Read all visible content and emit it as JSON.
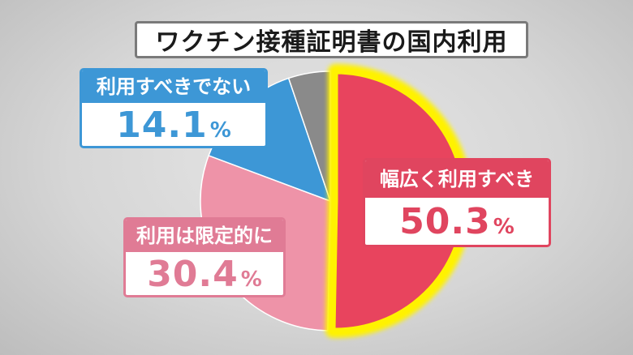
{
  "chart_data": {
    "type": "pie",
    "title": "ワクチン接種証明書の国内利用",
    "slices": [
      {
        "label": "幅広く利用すべき",
        "value": 50.3,
        "color": "#e8445e",
        "highlight": true
      },
      {
        "label": "利用は限定的に",
        "value": 30.4,
        "color": "#ee93a8"
      },
      {
        "label": "利用すべきでない",
        "value": 14.1,
        "color": "#3d97d6"
      },
      {
        "label": "",
        "value": 5.2,
        "color": "#8a8a8a"
      }
    ],
    "highlight_color": "#fff200",
    "unit": "%"
  },
  "callouts": {
    "yes": {
      "label": "幅広く利用すべき",
      "value": "50.3",
      "unit": "%"
    },
    "limited": {
      "label": "利用は限定的に",
      "value": "30.4",
      "unit": "%"
    },
    "no": {
      "label": "利用すべきでない",
      "value": "14.1",
      "unit": "%"
    }
  }
}
